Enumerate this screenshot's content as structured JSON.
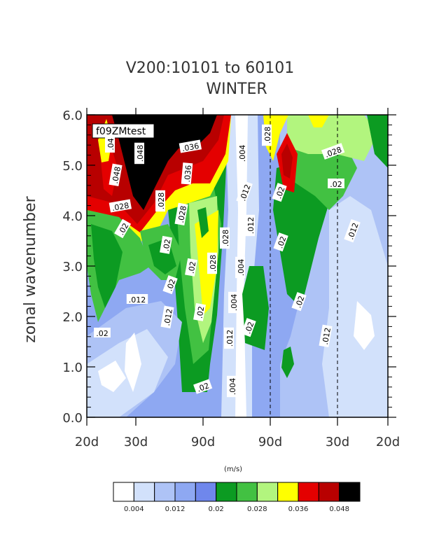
{
  "chart_data": {
    "type": "heatmap",
    "title": "V200:10101 to 60101",
    "subtitle": "WINTER",
    "ylabel": "zonal wavenumber",
    "units": "(m/s)",
    "legend_tag": "f09ZMtest",
    "ylim": [
      0.0,
      6.0
    ],
    "y_ticks": [
      "0.0",
      "1.0",
      "2.0",
      "3.0",
      "4.0",
      "5.0",
      "6.0"
    ],
    "x_ticks": [
      "20d",
      "30d",
      "90d",
      "90d",
      "30d",
      "20d"
    ],
    "grid": false,
    "colorbar": {
      "colors": [
        "#ffffff",
        "#d2e1fb",
        "#aec3f6",
        "#8ea8f2",
        "#6f87ec",
        "#0c9b22",
        "#42c142",
        "#b2f57e",
        "#ffff00",
        "#e40000",
        "#b80000",
        "#000000"
      ],
      "labels": [
        "0.004",
        "0.012",
        "0.02",
        "0.028",
        "0.036",
        "0.048"
      ]
    },
    "contour_labels": [
      ".04",
      ".048",
      ".036",
      ".048",
      ".036",
      ".028",
      ".028",
      ".028",
      ".02",
      ".02",
      ".02",
      ".012",
      ".012",
      ".02",
      ".02",
      ".028",
      ".028",
      ".004",
      ".012",
      ".012",
      ".004",
      ".004",
      ".012",
      ".004",
      ".028",
      ".02",
      ".02",
      ".02",
      ".02",
      ".028",
      ".02",
      ".012",
      ".012",
      ".02",
      ".02"
    ]
  }
}
